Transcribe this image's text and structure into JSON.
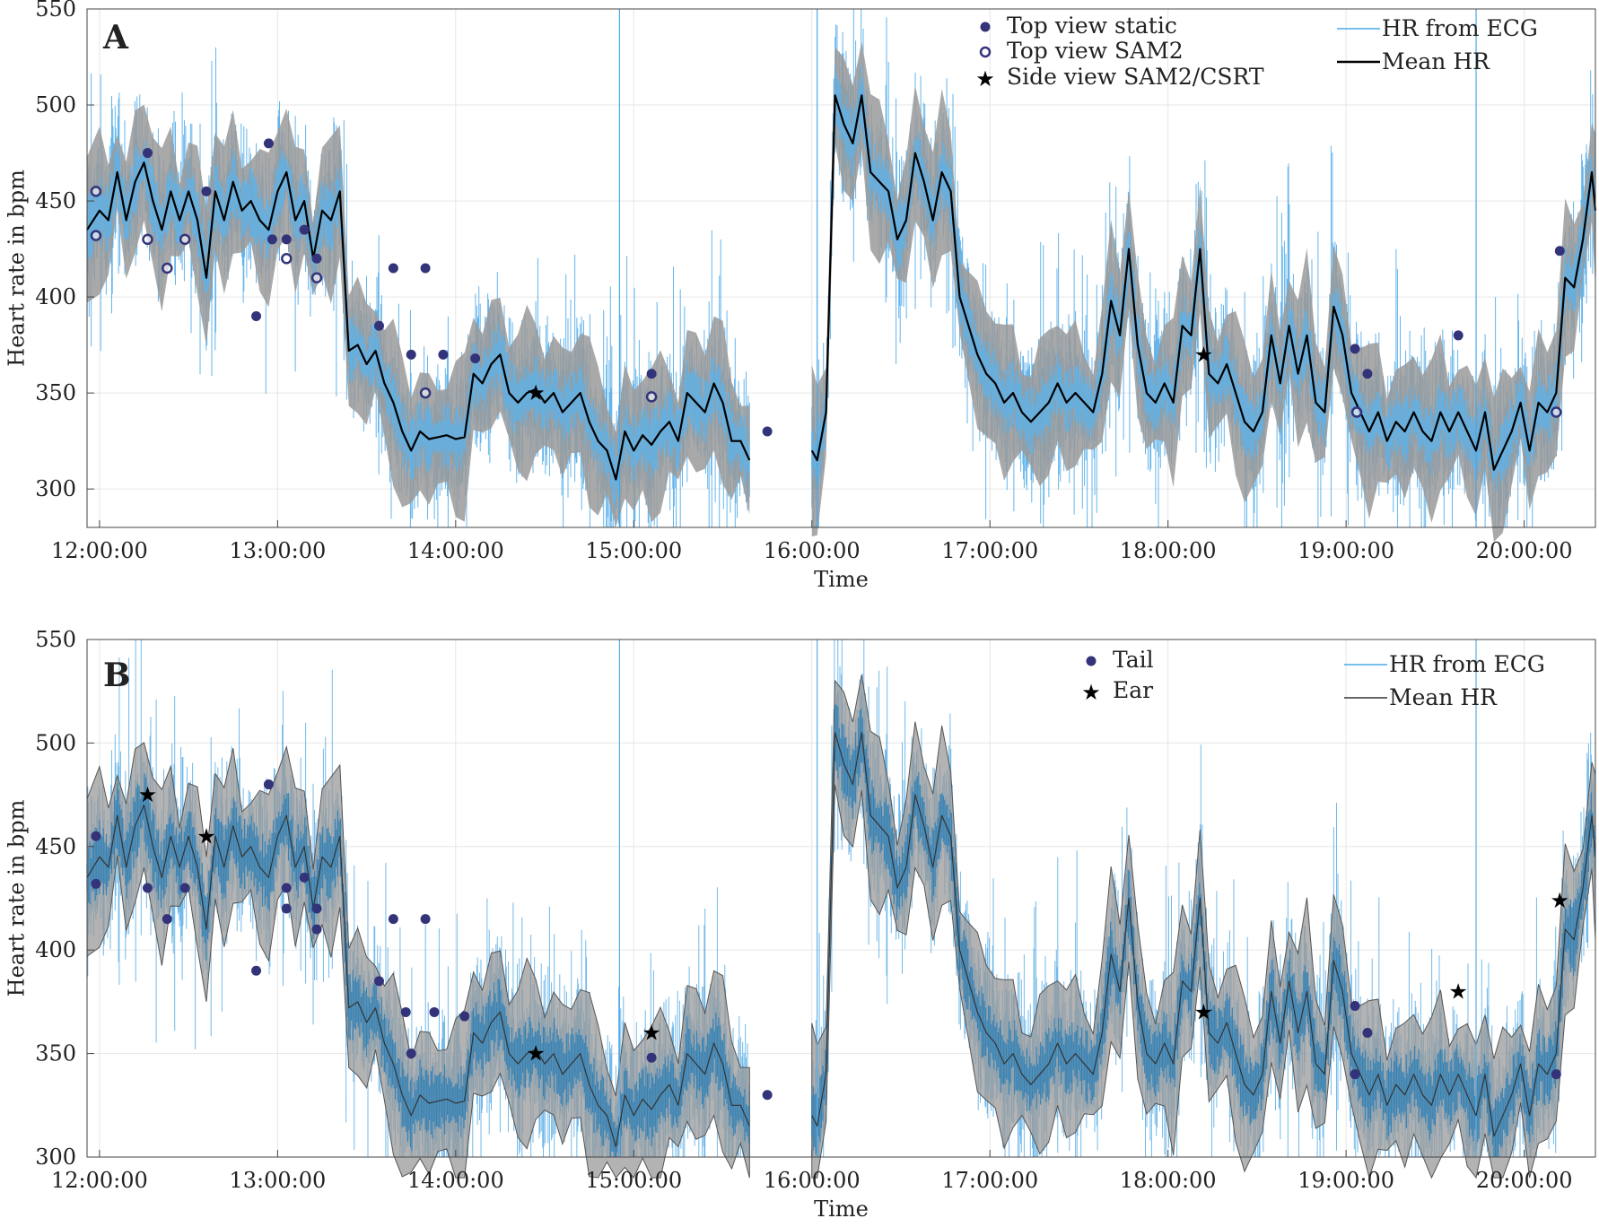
{
  "colors": {
    "ecg": "#4aa8e8",
    "ecg_dark": "#2f7fb6",
    "band": "#9a9a9a",
    "mean": "#000000",
    "marker": "#33337a"
  },
  "chart_data": [
    {
      "type": "line",
      "panel_label": "A",
      "xlabel": "Time",
      "ylabel": "Heart rate in bpm",
      "xlim": [
        11.93,
        20.4
      ],
      "ylim": [
        280,
        550
      ],
      "yticks": [
        300,
        350,
        400,
        450,
        500,
        550
      ],
      "xticks": [
        12,
        13,
        14,
        15,
        16,
        17,
        18,
        19,
        20
      ],
      "xtick_labels": [
        "12:00:00",
        "13:00:00",
        "14:00:00",
        "15:00:00",
        "16:00:00",
        "17:00:00",
        "18:00:00",
        "19:00:00",
        "20:00:00"
      ],
      "grid": true,
      "legend_markers": [
        "Top view static",
        "Top view SAM2",
        "Side view SAM2/CSRT"
      ],
      "legend_lines": [
        "HR from ECG",
        "Mean HR"
      ],
      "series_mean_hr": [
        [
          11.93,
          435
        ],
        [
          12.0,
          445
        ],
        [
          12.05,
          440
        ],
        [
          12.1,
          465
        ],
        [
          12.15,
          440
        ],
        [
          12.2,
          460
        ],
        [
          12.25,
          470
        ],
        [
          12.3,
          450
        ],
        [
          12.35,
          435
        ],
        [
          12.4,
          455
        ],
        [
          12.45,
          440
        ],
        [
          12.5,
          455
        ],
        [
          12.55,
          440
        ],
        [
          12.6,
          410
        ],
        [
          12.65,
          455
        ],
        [
          12.7,
          440
        ],
        [
          12.75,
          460
        ],
        [
          12.8,
          445
        ],
        [
          12.85,
          450
        ],
        [
          12.9,
          440
        ],
        [
          12.95,
          435
        ],
        [
          13.0,
          455
        ],
        [
          13.05,
          465
        ],
        [
          13.1,
          440
        ],
        [
          13.15,
          450
        ],
        [
          13.2,
          420
        ],
        [
          13.25,
          445
        ],
        [
          13.3,
          440
        ],
        [
          13.35,
          455
        ],
        [
          13.4,
          372
        ],
        [
          13.45,
          375
        ],
        [
          13.5,
          365
        ],
        [
          13.55,
          372
        ],
        [
          13.6,
          355
        ],
        [
          13.65,
          345
        ],
        [
          13.7,
          330
        ],
        [
          13.75,
          320
        ],
        [
          13.8,
          330
        ],
        [
          13.85,
          326
        ],
        [
          13.9,
          327
        ],
        [
          13.95,
          328
        ],
        [
          14.0,
          326
        ],
        [
          14.05,
          327
        ],
        [
          14.1,
          360
        ],
        [
          14.15,
          355
        ],
        [
          14.2,
          365
        ],
        [
          14.25,
          370
        ],
        [
          14.3,
          350
        ],
        [
          14.35,
          345
        ],
        [
          14.4,
          350
        ],
        [
          14.45,
          352
        ],
        [
          14.5,
          345
        ],
        [
          14.55,
          350
        ],
        [
          14.6,
          340
        ],
        [
          14.65,
          345
        ],
        [
          14.7,
          350
        ],
        [
          14.75,
          335
        ],
        [
          14.8,
          325
        ],
        [
          14.85,
          320
        ],
        [
          14.9,
          305
        ],
        [
          14.95,
          330
        ],
        [
          15.0,
          320
        ],
        [
          15.05,
          328
        ],
        [
          15.1,
          323
        ],
        [
          15.15,
          330
        ],
        [
          15.2,
          335
        ],
        [
          15.25,
          325
        ],
        [
          15.3,
          350
        ],
        [
          15.35,
          345
        ],
        [
          15.4,
          340
        ],
        [
          15.45,
          355
        ],
        [
          15.5,
          345
        ],
        [
          15.55,
          325
        ],
        [
          15.6,
          325
        ],
        [
          15.65,
          315
        ],
        null,
        [
          16.0,
          320
        ],
        [
          16.03,
          315
        ],
        [
          16.08,
          340
        ],
        [
          16.13,
          505
        ],
        [
          16.18,
          490
        ],
        [
          16.23,
          480
        ],
        [
          16.28,
          505
        ],
        [
          16.33,
          465
        ],
        [
          16.38,
          460
        ],
        [
          16.43,
          455
        ],
        [
          16.48,
          430
        ],
        [
          16.53,
          440
        ],
        [
          16.58,
          475
        ],
        [
          16.63,
          460
        ],
        [
          16.68,
          440
        ],
        [
          16.73,
          465
        ],
        [
          16.78,
          455
        ],
        [
          16.83,
          400
        ],
        [
          16.88,
          385
        ],
        [
          16.93,
          370
        ],
        [
          16.98,
          360
        ],
        [
          17.03,
          355
        ],
        [
          17.08,
          345
        ],
        [
          17.13,
          350
        ],
        [
          17.18,
          340
        ],
        [
          17.23,
          335
        ],
        [
          17.28,
          340
        ],
        [
          17.33,
          345
        ],
        [
          17.38,
          355
        ],
        [
          17.43,
          345
        ],
        [
          17.48,
          350
        ],
        [
          17.53,
          345
        ],
        [
          17.58,
          340
        ],
        [
          17.63,
          360
        ],
        [
          17.68,
          398
        ],
        [
          17.73,
          380
        ],
        [
          17.78,
          425
        ],
        [
          17.83,
          375
        ],
        [
          17.88,
          350
        ],
        [
          17.93,
          345
        ],
        [
          17.98,
          355
        ],
        [
          18.03,
          345
        ],
        [
          18.08,
          385
        ],
        [
          18.13,
          380
        ],
        [
          18.18,
          425
        ],
        [
          18.23,
          360
        ],
        [
          18.28,
          355
        ],
        [
          18.33,
          365
        ],
        [
          18.38,
          350
        ],
        [
          18.43,
          335
        ],
        [
          18.48,
          330
        ],
        [
          18.53,
          340
        ],
        [
          18.58,
          380
        ],
        [
          18.63,
          355
        ],
        [
          18.68,
          385
        ],
        [
          18.73,
          360
        ],
        [
          18.78,
          380
        ],
        [
          18.83,
          345
        ],
        [
          18.88,
          340
        ],
        [
          18.93,
          395
        ],
        [
          18.98,
          380
        ],
        [
          19.03,
          350
        ],
        [
          19.08,
          340
        ],
        [
          19.13,
          330
        ],
        [
          19.18,
          340
        ],
        [
          19.23,
          325
        ],
        [
          19.28,
          335
        ],
        [
          19.33,
          330
        ],
        [
          19.38,
          340
        ],
        [
          19.43,
          330
        ],
        [
          19.48,
          325
        ],
        [
          19.53,
          340
        ],
        [
          19.58,
          330
        ],
        [
          19.63,
          340
        ],
        [
          19.68,
          330
        ],
        [
          19.73,
          320
        ],
        [
          19.78,
          340
        ],
        [
          19.83,
          310
        ],
        [
          19.88,
          320
        ],
        [
          19.93,
          330
        ],
        [
          19.98,
          345
        ],
        [
          20.03,
          320
        ],
        [
          20.08,
          345
        ],
        [
          20.13,
          340
        ],
        [
          20.18,
          350
        ],
        [
          20.23,
          410
        ],
        [
          20.28,
          405
        ],
        [
          20.33,
          430
        ],
        [
          20.38,
          465
        ],
        [
          20.4,
          445
        ]
      ],
      "scatter_top_view_static": [
        [
          12.27,
          475
        ],
        [
          12.95,
          480
        ],
        [
          12.6,
          455
        ],
        [
          12.88,
          390
        ],
        [
          12.97,
          430
        ],
        [
          13.05,
          430
        ],
        [
          13.15,
          435
        ],
        [
          13.22,
          420
        ],
        [
          13.57,
          385
        ],
        [
          13.65,
          415
        ],
        [
          13.75,
          370
        ],
        [
          13.83,
          415
        ],
        [
          13.93,
          370
        ],
        [
          14.11,
          368
        ],
        [
          15.1,
          360
        ],
        [
          15.75,
          330
        ],
        [
          19.05,
          373
        ],
        [
          19.12,
          360
        ],
        [
          19.63,
          380
        ],
        [
          20.2,
          424
        ]
      ],
      "scatter_top_view_sam2": [
        [
          11.98,
          455
        ],
        [
          11.98,
          432
        ],
        [
          12.27,
          430
        ],
        [
          12.38,
          415
        ],
        [
          12.48,
          430
        ],
        [
          13.05,
          420
        ],
        [
          13.22,
          410
        ],
        [
          13.83,
          350
        ],
        [
          15.1,
          348
        ],
        [
          19.06,
          340
        ],
        [
          20.18,
          340
        ]
      ],
      "scatter_side_view": [
        [
          14.45,
          350
        ],
        [
          18.2,
          370
        ]
      ]
    },
    {
      "type": "line",
      "panel_label": "B",
      "xlabel": "Time",
      "ylabel": "Heart rate in bpm",
      "xlim": [
        11.93,
        20.4
      ],
      "ylim": [
        300,
        550
      ],
      "yticks": [
        300,
        350,
        400,
        450,
        500,
        550
      ],
      "xticks": [
        12,
        13,
        14,
        15,
        16,
        17,
        18,
        19,
        20
      ],
      "xtick_labels": [
        "12:00:00",
        "13:00:00",
        "14:00:00",
        "15:00:00",
        "16:00:00",
        "17:00:00",
        "18:00:00",
        "19:00:00",
        "20:00:00"
      ],
      "grid": true,
      "legend_markers": [
        "Tail",
        "Ear"
      ],
      "legend_lines": [
        "HR from ECG",
        "Mean HR"
      ],
      "scatter_tail": [
        [
          11.98,
          455
        ],
        [
          11.98,
          432
        ],
        [
          12.27,
          430
        ],
        [
          12.38,
          415
        ],
        [
          12.48,
          430
        ],
        [
          12.88,
          390
        ],
        [
          12.95,
          480
        ],
        [
          13.05,
          430
        ],
        [
          13.05,
          420
        ],
        [
          13.15,
          435
        ],
        [
          13.22,
          420
        ],
        [
          13.22,
          410
        ],
        [
          13.57,
          385
        ],
        [
          13.65,
          415
        ],
        [
          13.72,
          370
        ],
        [
          13.75,
          350
        ],
        [
          13.83,
          415
        ],
        [
          13.88,
          370
        ],
        [
          14.05,
          368
        ],
        [
          15.1,
          348
        ],
        [
          15.75,
          330
        ],
        [
          19.05,
          373
        ],
        [
          19.05,
          340
        ],
        [
          19.12,
          360
        ],
        [
          20.18,
          340
        ]
      ],
      "scatter_ear": [
        [
          12.27,
          475
        ],
        [
          12.6,
          455
        ],
        [
          14.45,
          350
        ],
        [
          15.1,
          360
        ],
        [
          18.2,
          370
        ],
        [
          19.63,
          380
        ],
        [
          20.2,
          424
        ]
      ]
    }
  ]
}
